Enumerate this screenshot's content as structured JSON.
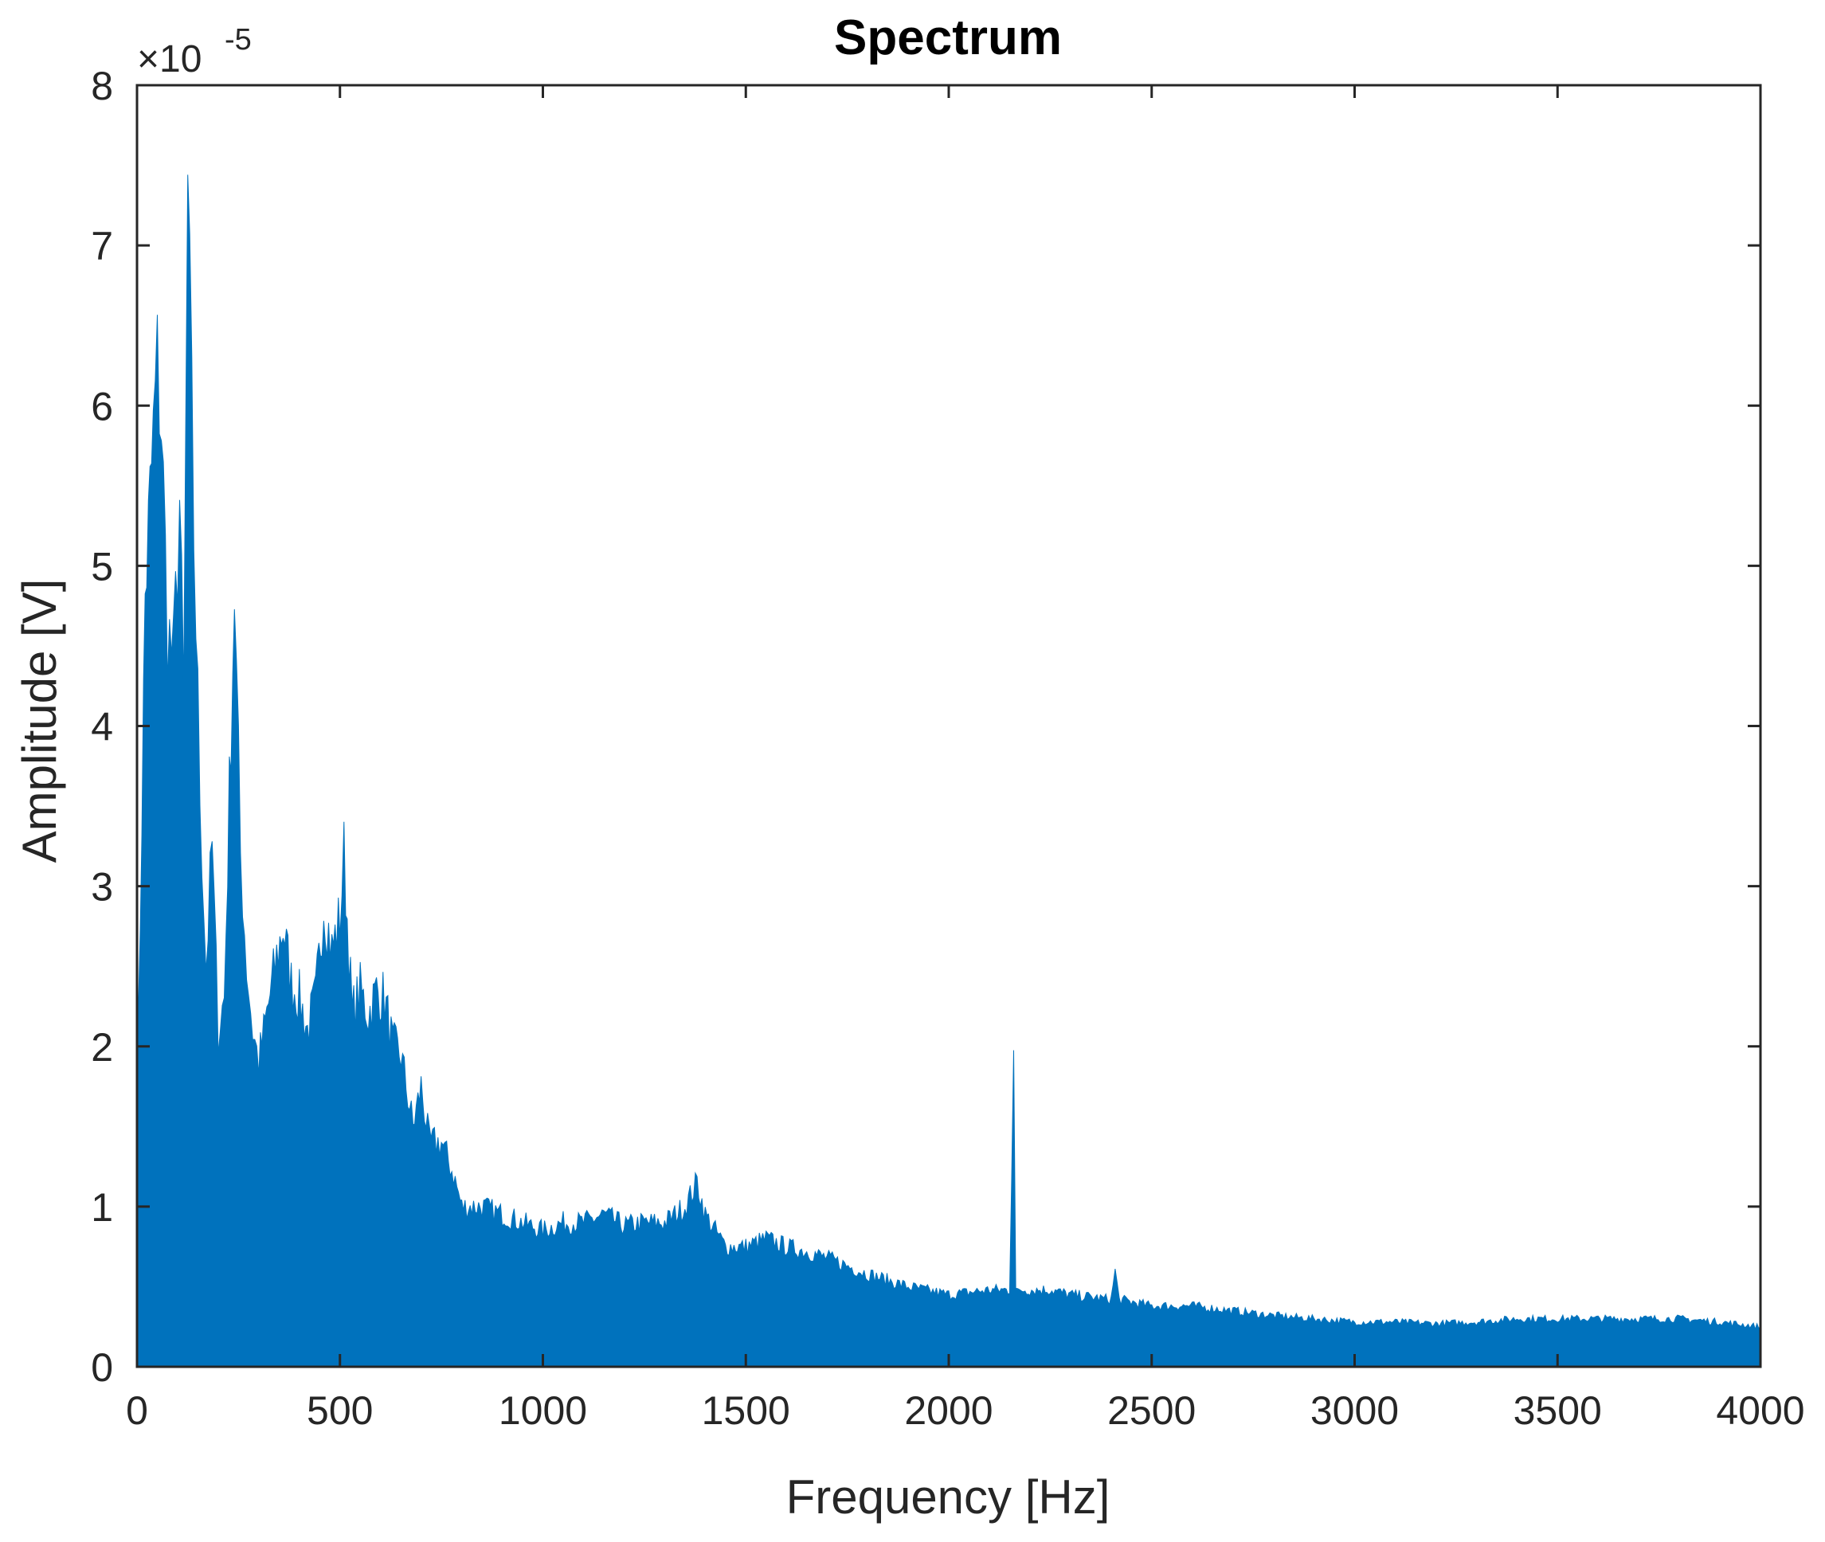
{
  "chart_data": {
    "type": "area",
    "title": "Spectrum",
    "xlabel": "Frequency [Hz]",
    "ylabel": "Amplitude [V]",
    "y_exponent_base": "×10",
    "y_exponent": "-5",
    "xlim": [
      0,
      4000
    ],
    "ylim": [
      0,
      8
    ],
    "x_ticks": [
      0,
      500,
      1000,
      1500,
      2000,
      2500,
      3000,
      3500,
      4000
    ],
    "x_tick_labels": [
      "0",
      "500",
      "1000",
      "1500",
      "2000",
      "2500",
      "3000",
      "3500",
      "4000"
    ],
    "y_ticks": [
      0,
      1,
      2,
      3,
      4,
      5,
      6,
      7,
      8
    ],
    "y_tick_labels": [
      "0",
      "1",
      "2",
      "3",
      "4",
      "5",
      "6",
      "7",
      "8"
    ],
    "grid": false,
    "fill_color": "#0072BD",
    "series": [
      {
        "x": [
          0,
          20,
          40,
          50,
          60,
          75,
          90,
          105,
          115,
          125,
          140,
          155,
          170,
          185,
          200,
          215,
          240,
          255,
          270,
          285,
          300,
          320,
          340,
          360,
          380,
          400,
          420,
          440,
          460,
          480,
          500,
          510,
          530,
          550,
          570,
          590,
          610,
          630,
          650,
          680,
          700,
          720,
          750,
          780,
          800,
          850,
          900,
          950,
          1000,
          1050,
          1100,
          1150,
          1200,
          1250,
          1300,
          1350,
          1380,
          1400,
          1450,
          1500,
          1550,
          1600,
          1650,
          1700,
          1800,
          1900,
          2000,
          2100,
          2150,
          2160,
          2165,
          2170,
          2180,
          2200,
          2250,
          2300,
          2400,
          2410,
          2420,
          2500,
          2600,
          2700,
          2800,
          2900,
          3000,
          3100,
          3200,
          3300,
          3400,
          3500,
          3600,
          3700,
          3800,
          3900,
          4000
        ],
        "y": [
          1.5,
          4.8,
          5.8,
          6.25,
          5.9,
          4.6,
          4.4,
          5.4,
          4.1,
          7.35,
          5.2,
          3.6,
          2.5,
          3.25,
          2.1,
          2.3,
          4.85,
          3.2,
          2.5,
          2.1,
          1.9,
          2.2,
          2.5,
          2.75,
          2.4,
          2.3,
          2.1,
          2.3,
          2.9,
          2.6,
          2.8,
          3.2,
          2.2,
          2.35,
          2.2,
          2.35,
          2.3,
          2.0,
          1.95,
          1.5,
          1.75,
          1.4,
          1.4,
          1.2,
          1.0,
          1.0,
          0.95,
          0.9,
          0.85,
          0.9,
          0.9,
          0.95,
          0.88,
          0.9,
          0.9,
          1.0,
          1.15,
          0.95,
          0.75,
          0.75,
          0.8,
          0.75,
          0.72,
          0.68,
          0.58,
          0.5,
          0.45,
          0.48,
          0.48,
          2.03,
          0.48,
          0.46,
          0.48,
          0.48,
          0.48,
          0.45,
          0.42,
          0.6,
          0.42,
          0.38,
          0.38,
          0.35,
          0.32,
          0.3,
          0.28,
          0.28,
          0.27,
          0.28,
          0.3,
          0.3,
          0.3,
          0.3,
          0.3,
          0.28,
          0.25
        ]
      }
    ]
  }
}
